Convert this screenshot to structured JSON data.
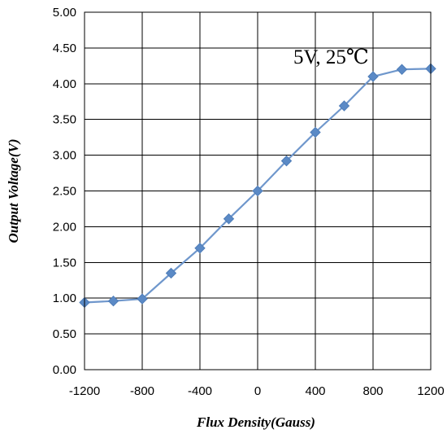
{
  "chart_data": {
    "type": "line",
    "title": "",
    "xlabel": "Flux Density(Gauss)",
    "ylabel": "Output Voltage(V)",
    "xlim": [
      -1200,
      1200
    ],
    "ylim": [
      0,
      5
    ],
    "x_ticks": [
      -1200,
      -800,
      -400,
      0,
      400,
      800,
      1200
    ],
    "x_tick_labels": [
      "-1200",
      "-800",
      "-400",
      "0",
      "400",
      "800",
      "1200"
    ],
    "y_ticks": [
      0,
      0.5,
      1,
      1.5,
      2,
      2.5,
      3,
      3.5,
      4,
      4.5,
      5
    ],
    "y_tick_labels": [
      "0.00",
      "0.50",
      "1.00",
      "1.50",
      "2.00",
      "2.50",
      "3.00",
      "3.50",
      "4.00",
      "4.50",
      "5.00"
    ],
    "grid": true,
    "annotation": "5V, 25℃",
    "series": [
      {
        "color": "#5b8ac6",
        "marker": "diamond",
        "x": [
          -1200,
          -1000,
          -800,
          -600,
          -400,
          -200,
          0,
          200,
          400,
          600,
          800,
          1000,
          1200
        ],
        "y": [
          0.94,
          0.96,
          0.99,
          1.35,
          1.7,
          2.11,
          2.5,
          2.92,
          3.32,
          3.69,
          4.1,
          4.2,
          4.21
        ]
      }
    ]
  }
}
